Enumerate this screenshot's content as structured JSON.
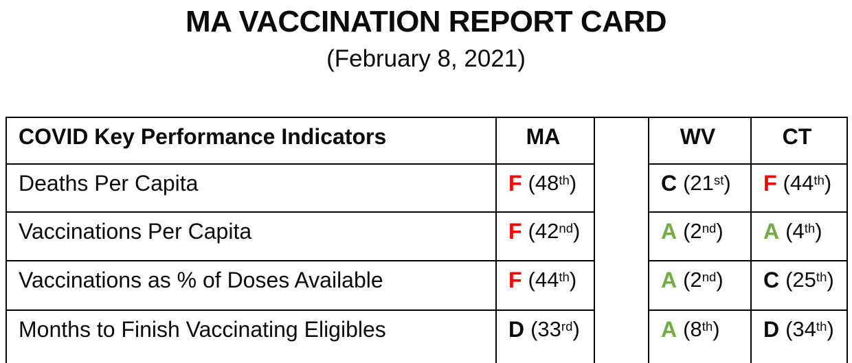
{
  "title": "MA VACCINATION REPORT CARD",
  "subtitle": "(February 8, 2021)",
  "table": {
    "header": {
      "indicators_label": "COVID Key Performance Indicators",
      "ma": "MA",
      "wv": "WV",
      "ct": "CT"
    },
    "grade_colors": {
      "A": "#70AD47",
      "B": "#0b0b0b",
      "C": "#0b0b0b",
      "D": "#0b0b0b",
      "F": "#FF0000"
    },
    "rows": [
      {
        "label": "Deaths Per Capita",
        "ma": {
          "grade": "F",
          "rank": "(48",
          "ordinal": "th",
          "close": ")"
        },
        "wv": {
          "grade": "C",
          "rank": "(21",
          "ordinal": "st",
          "close": ")"
        },
        "ct": {
          "grade": "F",
          "rank": "(44",
          "ordinal": "th",
          "close": ")"
        }
      },
      {
        "label": "Vaccinations Per Capita",
        "ma": {
          "grade": "F",
          "rank": "(42",
          "ordinal": "nd",
          "close": ")"
        },
        "wv": {
          "grade": "A",
          "rank": "(2",
          "ordinal": "nd",
          "close": ")"
        },
        "ct": {
          "grade": "A",
          "rank": "(4",
          "ordinal": "th",
          "close": ")"
        }
      },
      {
        "label": "Vaccinations as % of Doses Available",
        "ma": {
          "grade": "F",
          "rank": "(44",
          "ordinal": "th",
          "close": ")"
        },
        "wv": {
          "grade": "A",
          "rank": "(2",
          "ordinal": "nd",
          "close": ")"
        },
        "ct": {
          "grade": "C",
          "rank": "(25",
          "ordinal": "th",
          "close": ")"
        }
      },
      {
        "label": "Months to Finish Vaccinating Eligibles",
        "ma": {
          "grade": "D",
          "rank": "(33",
          "ordinal": "rd",
          "close": ")"
        },
        "wv": {
          "grade": "A",
          "rank": "(8",
          "ordinal": "th",
          "close": ")"
        },
        "ct": {
          "grade": "D",
          "rank": "(34",
          "ordinal": "th",
          "close": ")"
        }
      }
    ]
  },
  "chart_data": {
    "type": "table",
    "title": "MA VACCINATION REPORT CARD",
    "subtitle": "(February 8, 2021)",
    "row_header": "COVID Key Performance Indicators",
    "categories": [
      "Deaths Per Capita",
      "Vaccinations Per Capita",
      "Vaccinations as % of Doses Available",
      "Months to Finish Vaccinating Eligibles"
    ],
    "series": [
      {
        "name": "MA",
        "grades": [
          "F",
          "F",
          "F",
          "D"
        ],
        "ranks": [
          48,
          42,
          44,
          33
        ]
      },
      {
        "name": "WV",
        "grades": [
          "C",
          "A",
          "A",
          "A"
        ],
        "ranks": [
          21,
          2,
          2,
          8
        ]
      },
      {
        "name": "CT",
        "grades": [
          "F",
          "A",
          "C",
          "D"
        ],
        "ranks": [
          44,
          4,
          25,
          34
        ]
      }
    ]
  }
}
